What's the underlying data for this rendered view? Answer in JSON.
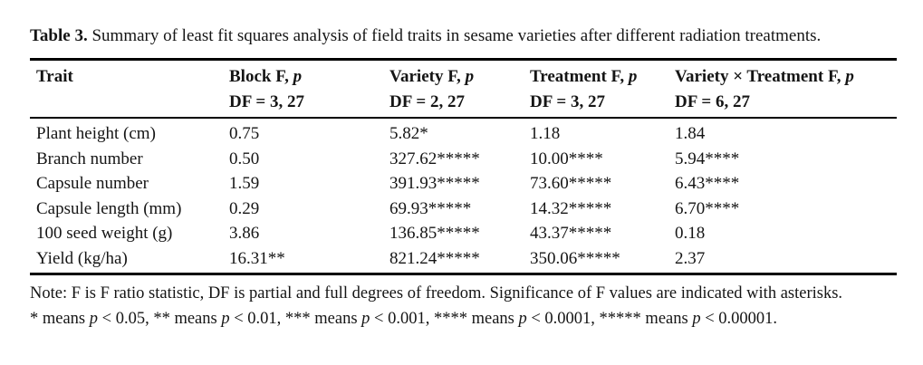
{
  "caption": {
    "label": "Table 3.",
    "text": "Summary of least fit squares analysis of field traits in sesame varieties after different radiation treatments."
  },
  "table": {
    "columns": [
      {
        "title": [
          {
            "t": "Trait"
          }
        ],
        "df": ""
      },
      {
        "title": [
          {
            "t": "Block F, "
          },
          {
            "t": "p",
            "i": true
          }
        ],
        "df": "DF = 3, 27"
      },
      {
        "title": [
          {
            "t": "Variety F, "
          },
          {
            "t": "p",
            "i": true
          }
        ],
        "df": "DF = 2, 27"
      },
      {
        "title": [
          {
            "t": "Treatment F, "
          },
          {
            "t": "p",
            "i": true
          }
        ],
        "df": "DF = 3, 27"
      },
      {
        "title": [
          {
            "t": "Variety × Treatment F, "
          },
          {
            "t": "p",
            "i": true
          }
        ],
        "df": "DF = 6, 27"
      }
    ],
    "rows": [
      {
        "trait": "Plant height (cm)",
        "values": [
          "0.75",
          "5.82*",
          "1.18",
          "1.84"
        ]
      },
      {
        "trait": "Branch number",
        "values": [
          "0.50",
          "327.62*****",
          "10.00****",
          "5.94****"
        ]
      },
      {
        "trait": "Capsule number",
        "values": [
          "1.59",
          "391.93*****",
          "73.60*****",
          "6.43****"
        ]
      },
      {
        "trait": "Capsule length (mm)",
        "values": [
          "0.29",
          "69.93*****",
          "14.32*****",
          "6.70****"
        ]
      },
      {
        "trait": "100 seed weight (g)",
        "values": [
          "3.86",
          "136.85*****",
          "43.37*****",
          "0.18"
        ]
      },
      {
        "trait": "Yield (kg/ha)",
        "values": [
          "16.31**",
          "821.24*****",
          "350.06*****",
          "2.37"
        ]
      }
    ]
  },
  "notes": {
    "line1": "Note: F is F ratio statistic, DF is partial and full degrees of freedom. Significance of F values are indicated with asterisks.",
    "line2": [
      {
        "t": "* means "
      },
      {
        "t": "p",
        "i": true
      },
      {
        "t": " < 0.05, ** means "
      },
      {
        "t": "p",
        "i": true
      },
      {
        "t": " < 0.01, *** means "
      },
      {
        "t": "p",
        "i": true
      },
      {
        "t": " < 0.001, **** means "
      },
      {
        "t": "p",
        "i": true
      },
      {
        "t": " < 0.0001, ***** means "
      },
      {
        "t": "p",
        "i": true
      },
      {
        "t": " < 0.00001."
      }
    ]
  }
}
